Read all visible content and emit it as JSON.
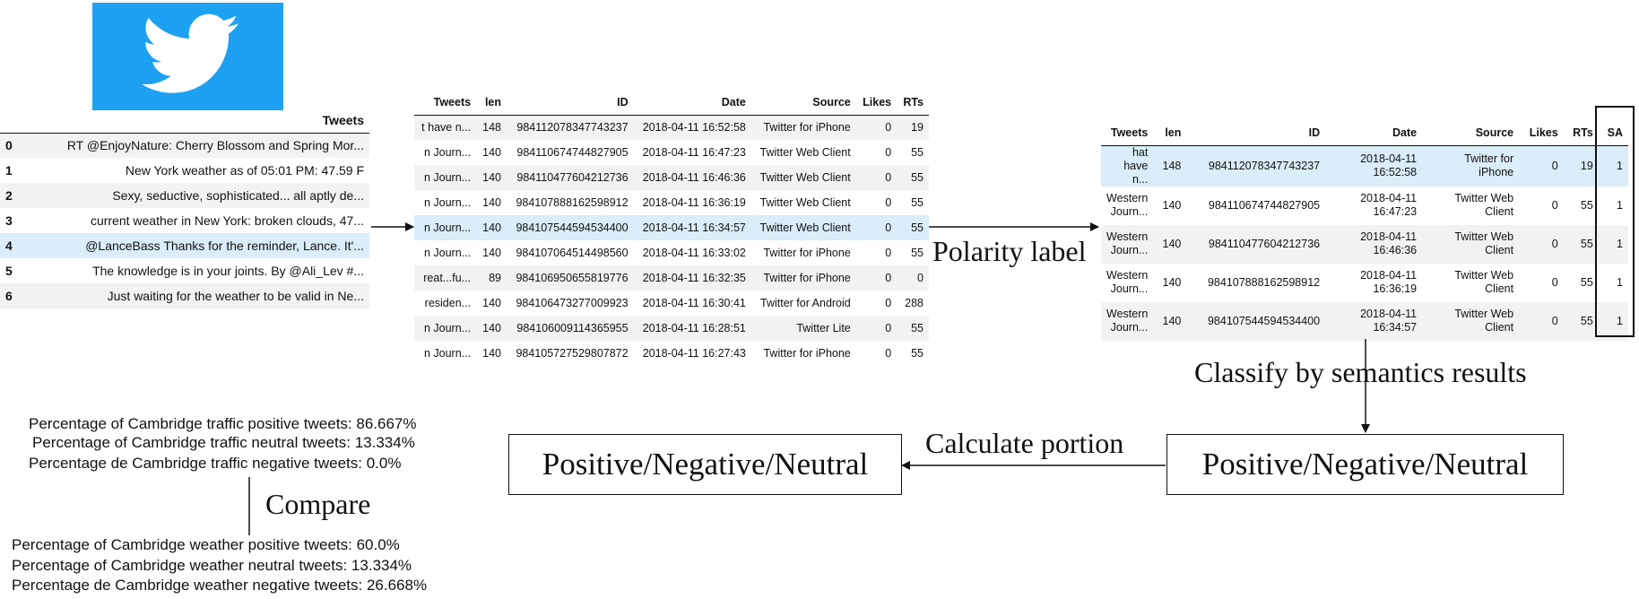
{
  "table1": {
    "header": "Tweets",
    "rows": [
      {
        "idx": "0",
        "text": "RT @EnjoyNature: Cherry Blossom and Spring Mor..."
      },
      {
        "idx": "1",
        "text": "New York weather as of 05:01 PM: 47.59 F"
      },
      {
        "idx": "2",
        "text": "Sexy, seductive, sophisticated... all aptly de..."
      },
      {
        "idx": "3",
        "text": "current weather in New York: broken clouds, 47..."
      },
      {
        "idx": "4",
        "text": "@LanceBass Thanks for the reminder, Lance. It'..."
      },
      {
        "idx": "5",
        "text": "The knowledge is in your joints. By @Ali_Lev #..."
      },
      {
        "idx": "6",
        "text": "Just waiting for the weather to be valid in Ne..."
      }
    ]
  },
  "table2": {
    "headers": [
      "Tweets",
      "len",
      "ID",
      "Date",
      "Source",
      "Likes",
      "RTs"
    ],
    "rows": [
      [
        "t have n...",
        "148",
        "984112078347743237",
        "2018-04-11 16:52:58",
        "Twitter for iPhone",
        "0",
        "19"
      ],
      [
        "n Journ...",
        "140",
        "984110674744827905",
        "2018-04-11 16:47:23",
        "Twitter Web Client",
        "0",
        "55"
      ],
      [
        "n Journ...",
        "140",
        "984110477604212736",
        "2018-04-11 16:46:36",
        "Twitter Web Client",
        "0",
        "55"
      ],
      [
        "n Journ...",
        "140",
        "984107888162598912",
        "2018-04-11 16:36:19",
        "Twitter Web Client",
        "0",
        "55"
      ],
      [
        "n Journ...",
        "140",
        "984107544594534400",
        "2018-04-11 16:34:57",
        "Twitter Web Client",
        "0",
        "55"
      ],
      [
        "n Journ...",
        "140",
        "984107064514498560",
        "2018-04-11 16:33:02",
        "Twitter for iPhone",
        "0",
        "55"
      ],
      [
        "reat...fu...",
        "89",
        "984106950655819776",
        "2018-04-11 16:32:35",
        "Twitter for iPhone",
        "0",
        "0"
      ],
      [
        "residen...",
        "140",
        "984106473277009923",
        "2018-04-11 16:30:41",
        "Twitter for Android",
        "0",
        "288"
      ],
      [
        "n Journ...",
        "140",
        "984106009114365955",
        "2018-04-11 16:28:51",
        "Twitter Lite",
        "0",
        "55"
      ],
      [
        "n Journ...",
        "140",
        "984105727529807872",
        "2018-04-11 16:27:43",
        "Twitter for iPhone",
        "0",
        "55"
      ]
    ]
  },
  "table3": {
    "headers": [
      "Tweets",
      "len",
      "ID",
      "Date",
      "Source",
      "Likes",
      "RTs",
      "SA"
    ],
    "rows": [
      [
        "hat have n...",
        "148",
        "984112078347743237",
        "2018-04-11 16:52:58",
        "Twitter for iPhone",
        "0",
        "19",
        "1"
      ],
      [
        "Western Journ...",
        "140",
        "984110674744827905",
        "2018-04-11 16:47:23",
        "Twitter Web Client",
        "0",
        "55",
        "1"
      ],
      [
        "Western Journ...",
        "140",
        "984110477604212736",
        "2018-04-11 16:46:36",
        "Twitter Web Client",
        "0",
        "55",
        "1"
      ],
      [
        "Western Journ...",
        "140",
        "984107888162598912",
        "2018-04-11 16:36:19",
        "Twitter Web Client",
        "0",
        "55",
        "1"
      ],
      [
        "Western Journ...",
        "140",
        "984107544594534400",
        "2018-04-11 16:34:57",
        "Twitter Web Client",
        "0",
        "55",
        "1"
      ]
    ]
  },
  "labels": {
    "polarity": "Polarity label",
    "classify": "Classify by semantics results",
    "calculate": "Calculate portion",
    "compare": "Compare",
    "box_right": "Positive/Negative/Neutral",
    "box_left": "Positive/Negative/Neutral"
  },
  "traffic": [
    "Percentage of Cambridge traffic positive tweets: 86.667%",
    "Percentage of Cambridge traffic neutral tweets: 13.334%",
    "Percentage de Cambridge traffic negative tweets: 0.0%"
  ],
  "weather": [
    "Percentage of Cambridge weather positive tweets: 60.0%",
    "Percentage of Cambridge weather neutral tweets: 13.334%",
    "Percentage de Cambridge weather negative tweets: 26.668%"
  ],
  "colors": {
    "twitter_blue": "#1da1f2",
    "row_highlight": "#daedf8",
    "row_stripe": "#f2f2f2"
  },
  "icons": {
    "logo": "twitter-bird-icon"
  }
}
